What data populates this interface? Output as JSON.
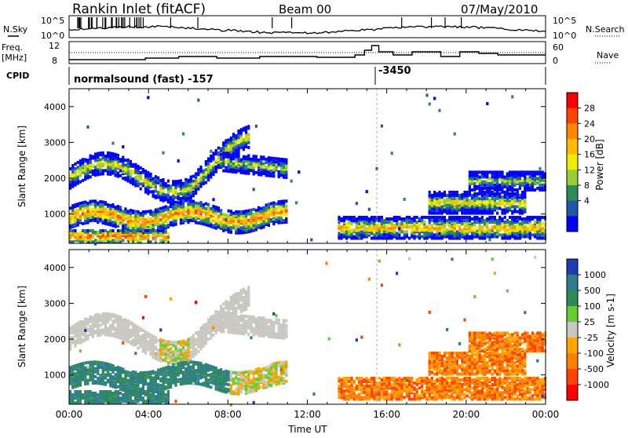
{
  "header": {
    "station": "Rankin Inlet (fitACF)",
    "beam": "Beam 00",
    "date": "07/May/2010"
  },
  "summary": {
    "nsky_label": "N.Sky",
    "nsearch_label": "N.Search",
    "freq_label_1": "Freq.",
    "freq_label_2": "[MHz]",
    "nave_label": "Nave",
    "cpid_label": "CPID",
    "noise_ticks": [
      "10^5",
      "10^0"
    ],
    "freq_ticks": [
      "12",
      "8"
    ],
    "nave_ticks": [
      "60",
      "0"
    ],
    "cpid_mode": "normalsound (fast) -157",
    "cpid_mode_2": "-3450"
  },
  "chart_data": [
    {
      "type": "heatmap",
      "title": "",
      "xlabel": "Time UT",
      "ylabel": "Slant Range [km]",
      "x_ticks": [
        "00:00",
        "04:00",
        "08:00",
        "12:00",
        "16:00",
        "20:00",
        "00:00"
      ],
      "y_ticks": [
        1000,
        2000,
        3000,
        4000
      ],
      "ylim": [
        180,
        4500
      ],
      "colorbar": {
        "label": "Power [dB]",
        "ticks": [
          "28",
          "24",
          "20",
          "16",
          "12",
          "8",
          "4"
        ],
        "colors": [
          "#ff0000",
          "#ff4400",
          "#ff8800",
          "#ffbb00",
          "#eeee00",
          "#9acd32",
          "#2e8b57",
          "#1e5aa8",
          "#0000ff"
        ]
      }
    },
    {
      "type": "heatmap",
      "title": "",
      "xlabel": "Time UT",
      "ylabel": "Slant Range [km]",
      "x_ticks": [
        "00:00",
        "04:00",
        "08:00",
        "12:00",
        "16:00",
        "20:00",
        "00:00"
      ],
      "y_ticks": [
        1000,
        2000,
        3000,
        4000
      ],
      "ylim": [
        180,
        4500
      ],
      "colorbar": {
        "label": "Velocity [m s-1]",
        "ticks": [
          "1000",
          "500",
          "100",
          "25",
          "-25",
          "-100",
          "-500",
          "-1000"
        ],
        "colors": [
          "#1e3cb4",
          "#2e7d8f",
          "#2e8b57",
          "#66cc33",
          "#c8c8c0",
          "#ffa500",
          "#ff7f00",
          "#ff4500",
          "#ff0000"
        ]
      }
    }
  ]
}
